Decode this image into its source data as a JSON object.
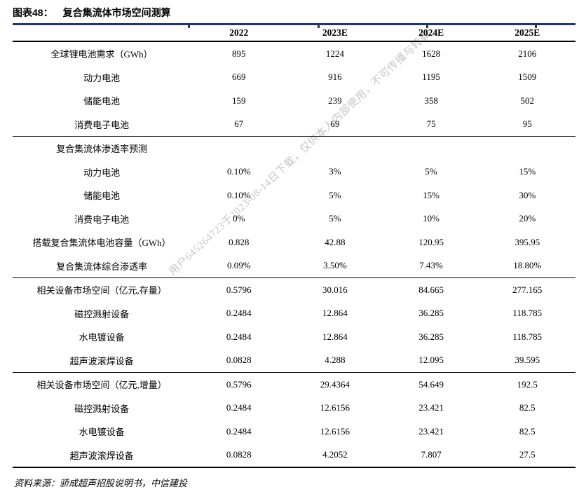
{
  "title": {
    "prefix": "图表48：",
    "text": "复合集流体市场空间测算"
  },
  "source": "资料来源：骄成超声招股说明书，中信建投",
  "watermark": "用户645264723于2023-08-14日下载，仅供本人内部使用，不可传播与转载",
  "colors": {
    "accent_navy": "#1f3864",
    "rule_black": "#000000",
    "watermark_gray": "#c6c6c6",
    "text": "#000000"
  },
  "table": {
    "col_headers": [
      "2022",
      "2023E",
      "2024E",
      "2025E"
    ],
    "groups": [
      {
        "rows": [
          {
            "label": "全球锂电池需求（GWh）",
            "values": [
              "895",
              "1224",
              "1628",
              "2106"
            ]
          },
          {
            "label": "动力电池",
            "values": [
              "669",
              "916",
              "1195",
              "1509"
            ]
          },
          {
            "label": "储能电池",
            "values": [
              "159",
              "239",
              "358",
              "502"
            ]
          },
          {
            "label": "消费电子电池",
            "values": [
              "67",
              "69",
              "75",
              "95"
            ]
          }
        ]
      },
      {
        "rows": [
          {
            "label": "复合集流体渗透率预测",
            "values": [
              "",
              "",
              "",
              ""
            ]
          },
          {
            "label": "动力电池",
            "values": [
              "0.10%",
              "3%",
              "5%",
              "15%"
            ]
          },
          {
            "label": "储能电池",
            "values": [
              "0.10%",
              "5%",
              "15%",
              "30%"
            ]
          },
          {
            "label": "消费电子电池",
            "values": [
              "0%",
              "5%",
              "10%",
              "20%"
            ]
          },
          {
            "label": "搭载复合集流体电池容量（GWh）",
            "values": [
              "0.828",
              "42.88",
              "120.95",
              "395.95"
            ]
          },
          {
            "label": "复合集流体综合渗透率",
            "values": [
              "0.09%",
              "3.50%",
              "7.43%",
              "18.80%"
            ]
          }
        ]
      },
      {
        "rows": [
          {
            "label": "相关设备市场空间（亿元,存量）",
            "values": [
              "0.5796",
              "30.016",
              "84.665",
              "277.165"
            ]
          },
          {
            "label": "磁控溅射设备",
            "values": [
              "0.2484",
              "12.864",
              "36.285",
              "118.785"
            ]
          },
          {
            "label": "水电镀设备",
            "values": [
              "0.2484",
              "12.864",
              "36.285",
              "118.785"
            ]
          },
          {
            "label": "超声波滚焊设备",
            "values": [
              "0.0828",
              "4.288",
              "12.095",
              "39.595"
            ]
          }
        ]
      },
      {
        "rows": [
          {
            "label": "相关设备市场空间（亿元,增量）",
            "values": [
              "0.5796",
              "29.4364",
              "54.649",
              "192.5"
            ]
          },
          {
            "label": "磁控溅射设备",
            "values": [
              "0.2484",
              "12.6156",
              "23.421",
              "82.5"
            ]
          },
          {
            "label": "水电镀设备",
            "values": [
              "0.2484",
              "12.6156",
              "23.421",
              "82.5"
            ]
          },
          {
            "label": "超声波滚焊设备",
            "values": [
              "0.0828",
              "4.2052",
              "7.807",
              "27.5"
            ]
          }
        ]
      }
    ]
  }
}
